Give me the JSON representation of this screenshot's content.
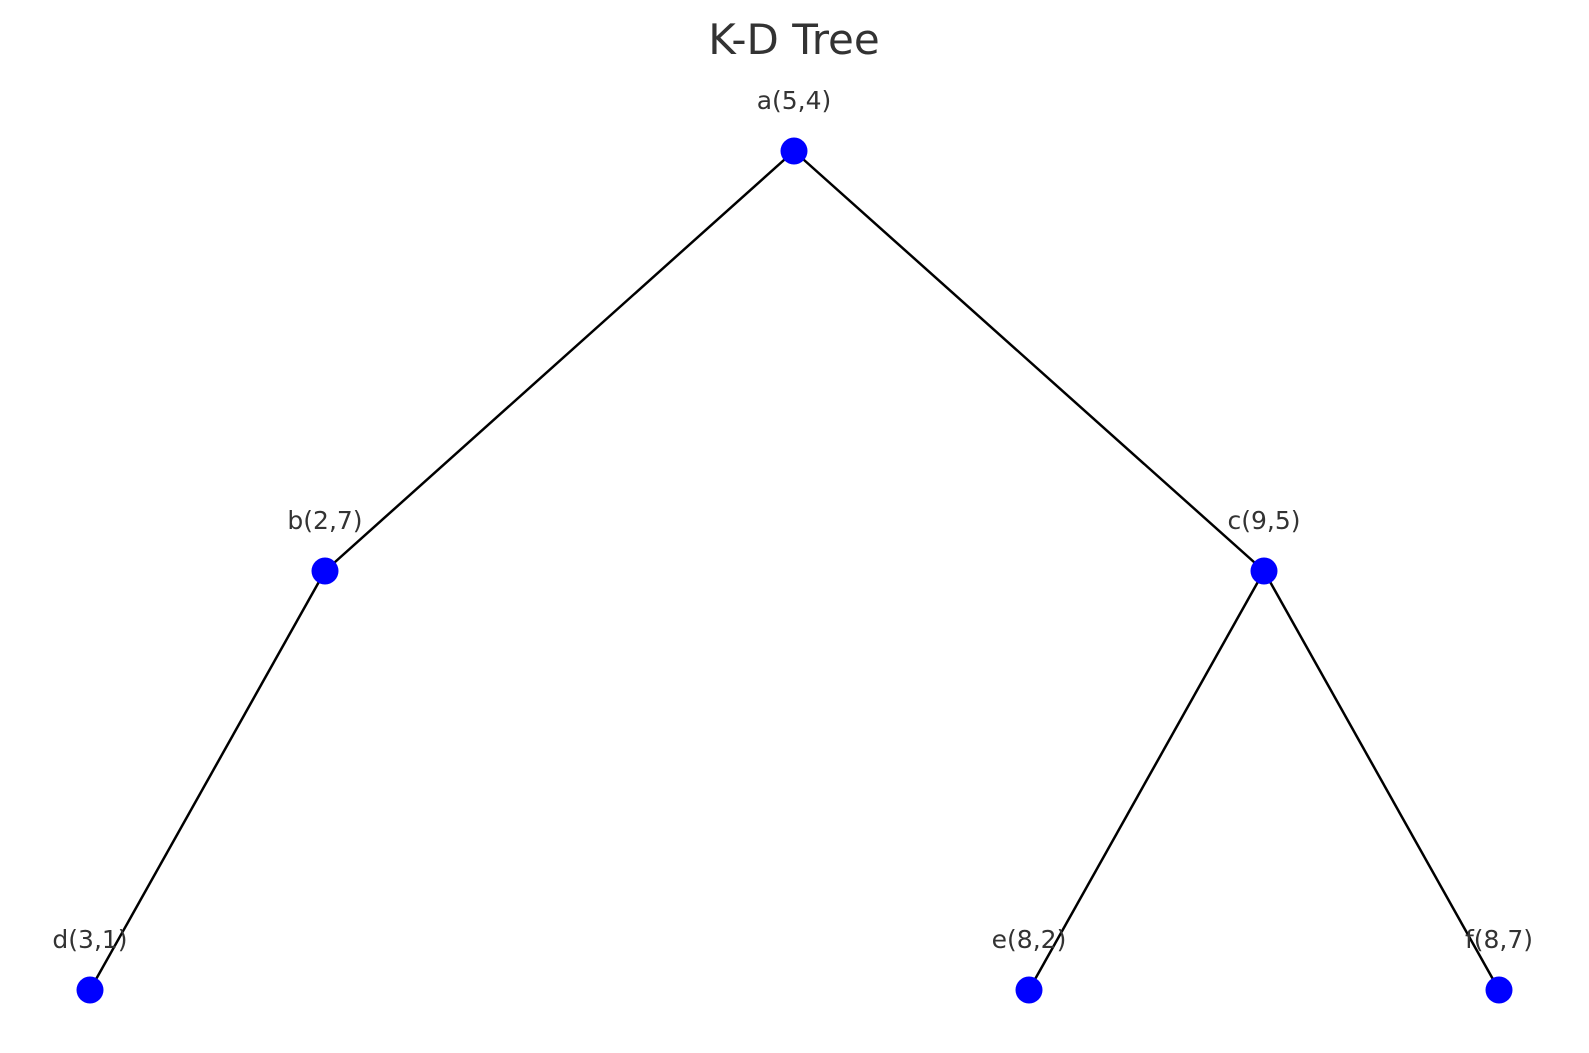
{
  "title": "K-D Tree",
  "colors": {
    "node_fill": "#0000ff",
    "edge": "#000000",
    "text": "#333333",
    "background": "#ffffff"
  },
  "nodes": [
    {
      "id": "a",
      "label": "a(5,4)"
    },
    {
      "id": "b",
      "label": "b(2,7)"
    },
    {
      "id": "c",
      "label": "c(9,5)"
    },
    {
      "id": "d",
      "label": "d(3,1)"
    },
    {
      "id": "e",
      "label": "e(8,2)"
    },
    {
      "id": "f",
      "label": "f(8,7)"
    }
  ],
  "edges": [
    {
      "from": "a",
      "to": "b"
    },
    {
      "from": "a",
      "to": "c"
    },
    {
      "from": "b",
      "to": "d"
    },
    {
      "from": "c",
      "to": "e"
    },
    {
      "from": "c",
      "to": "f"
    }
  ]
}
